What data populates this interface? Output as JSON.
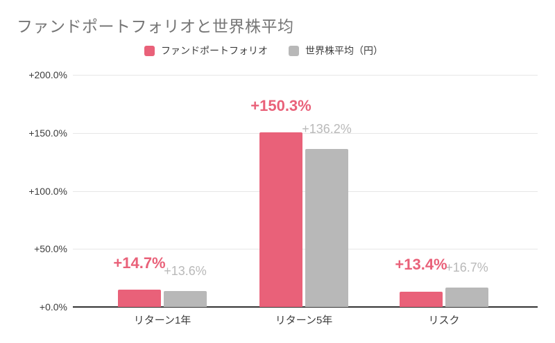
{
  "title": "ファンドポートフォリオと世界株平均",
  "colors": {
    "background": "#ffffff",
    "title_text": "#757575",
    "axis_text": "#3c3c3c",
    "grid_line": "#e6e6e6",
    "baseline": "#333333",
    "fund": "#e96179",
    "world": "#b8b8b8",
    "world_label_text": "#b9b9b9"
  },
  "legend": {
    "items": [
      {
        "label": "ファンドポートフォリオ",
        "color": "#e96179"
      },
      {
        "label": "世界株平均（円）",
        "color": "#b8b8b8"
      }
    ]
  },
  "chart_data": {
    "type": "bar",
    "title": "ファンドポートフォリオと世界株平均",
    "categories": [
      "リターン1年",
      "リターン5年",
      "リスク"
    ],
    "series": [
      {
        "name": "ファンドポートフォリオ",
        "color": "#e96179",
        "values": [
          14.7,
          150.3,
          13.4
        ],
        "data_labels": [
          "+14.7%",
          "+150.3%",
          "+13.4%"
        ]
      },
      {
        "name": "世界株平均（円）",
        "color": "#b8b8b8",
        "values": [
          13.6,
          136.2,
          16.7
        ],
        "data_labels": [
          "+13.6%",
          "+136.2%",
          "+16.7%"
        ]
      }
    ],
    "xlabel": "",
    "ylabel": "",
    "ylim": [
      0,
      200
    ],
    "y_ticks": [
      {
        "value": 0,
        "label": "+0.0%"
      },
      {
        "value": 50,
        "label": "+50.0%"
      },
      {
        "value": 100,
        "label": "+100.0%"
      },
      {
        "value": 150,
        "label": "+150.0%"
      },
      {
        "value": 200,
        "label": "+200.0%"
      }
    ],
    "grid": true,
    "legend_position": "top"
  }
}
